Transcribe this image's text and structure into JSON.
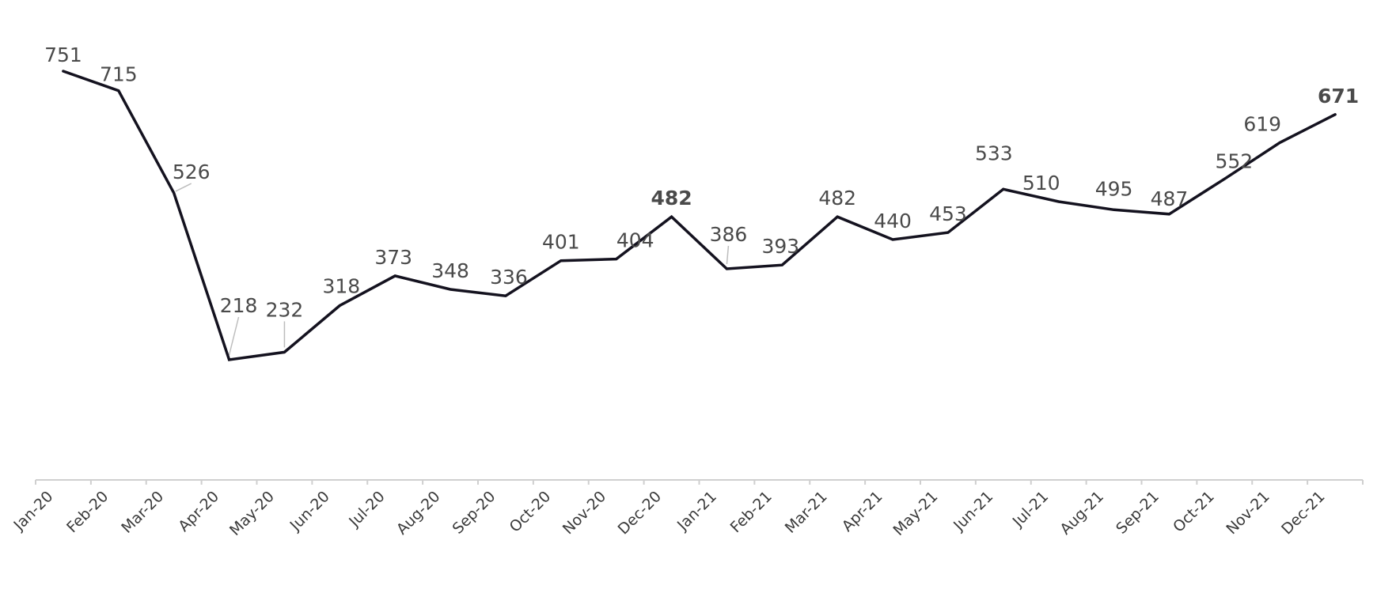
{
  "chart_data": {
    "type": "line",
    "title": "",
    "xlabel": "",
    "ylabel": "",
    "categories": [
      "Jan-20",
      "Feb-20",
      "Mar-20",
      "Apr-20",
      "May-20",
      "Jun-20",
      "Jul-20",
      "Aug-20",
      "Sep-20",
      "Oct-20",
      "Nov-20",
      "Dec-20",
      "Jan-21",
      "Feb-21",
      "Mar-21",
      "Apr-21",
      "May-21",
      "Jun-21",
      "Jul-21",
      "Aug-21",
      "Sep-21",
      "Oct-21",
      "Nov-21",
      "Dec-21"
    ],
    "series": [
      {
        "values": [
          751,
          715,
          526,
          218,
          232,
          318,
          373,
          348,
          336,
          401,
          404,
          482,
          386,
          393,
          482,
          440,
          453,
          533,
          510,
          495,
          487,
          552,
          619,
          671
        ]
      }
    ],
    "highlighted_labels": [
      "Dec-20",
      "Dec-21"
    ],
    "ylim": [
      0,
      780
    ],
    "grid": false,
    "legend": "none",
    "colors": {
      "line": "#14121f",
      "label": "#4a4a4a",
      "highlight": "#1aa84a",
      "axis": "#cfcfcf",
      "tick_label": "#3a3a3a",
      "leader": "#bdbdbd"
    }
  }
}
